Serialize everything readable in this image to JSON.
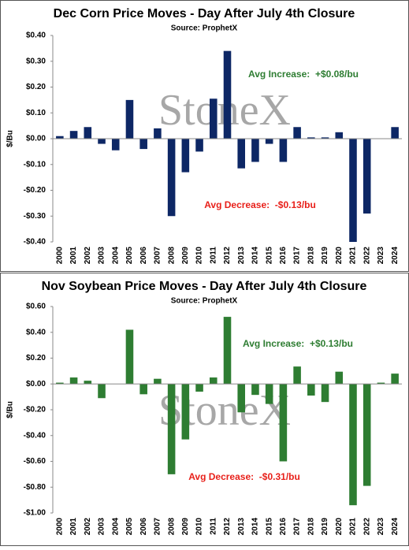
{
  "chart_data": [
    {
      "type": "bar",
      "title": "Dec Corn Price Moves - Day After July 4th Closure",
      "subtitle": "Source: ProphetX",
      "y_label": "$/Bu",
      "watermark": "StoneX",
      "color": "#0d2765",
      "categories": [
        "2000",
        "2001",
        "2002",
        "2003",
        "2004",
        "2005",
        "2006",
        "2007",
        "2008",
        "2009",
        "2010",
        "2011",
        "2012",
        "2013",
        "2014",
        "2015",
        "2016",
        "2017",
        "2018",
        "2019",
        "2020",
        "2021",
        "2022",
        "2023",
        "2024"
      ],
      "values": [
        0.01,
        0.03,
        0.045,
        -0.02,
        -0.045,
        0.15,
        -0.04,
        0.04,
        -0.3,
        -0.13,
        -0.05,
        0.155,
        0.34,
        -0.115,
        -0.09,
        -0.02,
        -0.09,
        0.045,
        0.005,
        0.005,
        0.025,
        -0.4,
        -0.29,
        0,
        0.045
      ],
      "ylim": [
        -0.4,
        0.4
      ],
      "yticks": [
        {
          "value": -0.4,
          "label": "-$0.40"
        },
        {
          "value": -0.3,
          "label": "-$0.30"
        },
        {
          "value": -0.2,
          "label": "-$0.20"
        },
        {
          "value": -0.1,
          "label": "-$0.10"
        },
        {
          "value": 0,
          "label": "$0.00"
        },
        {
          "value": 0.1,
          "label": "$0.10"
        },
        {
          "value": 0.2,
          "label": "$0.20"
        },
        {
          "value": 0.3,
          "label": "$0.30"
        },
        {
          "value": 0.4,
          "label": "$0.40"
        }
      ],
      "annotations": [
        {
          "text": "Avg Increase:  +$0.08/bu",
          "color": "#2e7d32"
        },
        {
          "text": "Avg Decrease:  -$0.13/bu",
          "color": "#e8201a"
        }
      ]
    },
    {
      "type": "bar",
      "title": "Nov Soybean Price Moves - Day After July 4th Closure",
      "subtitle": "Source: ProphetX",
      "y_label": "$/Bu",
      "watermark": "StoneX",
      "color": "#2e7d32",
      "categories": [
        "2000",
        "2001",
        "2002",
        "2003",
        "2004",
        "2005",
        "2006",
        "2007",
        "2008",
        "2009",
        "2010",
        "2011",
        "2012",
        "2013",
        "2014",
        "2015",
        "2016",
        "2017",
        "2018",
        "2019",
        "2020",
        "2021",
        "2022",
        "2023",
        "2024"
      ],
      "values": [
        0.01,
        0.05,
        0.025,
        -0.11,
        0,
        0.42,
        -0.08,
        0.04,
        -0.7,
        -0.43,
        -0.06,
        0.05,
        0.52,
        -0.22,
        -0.085,
        -0.155,
        -0.6,
        0.135,
        -0.09,
        -0.14,
        0.095,
        -0.94,
        -0.79,
        0.01,
        0.08
      ],
      "ylim": [
        -1,
        0.6
      ],
      "yticks": [
        {
          "value": -1,
          "label": "-$1.00"
        },
        {
          "value": -0.8,
          "label": "-$0.80"
        },
        {
          "value": -0.6,
          "label": "-$0.60"
        },
        {
          "value": -0.4,
          "label": "-$0.40"
        },
        {
          "value": -0.2,
          "label": "-$0.20"
        },
        {
          "value": 0,
          "label": "$0.00"
        },
        {
          "value": 0.2,
          "label": "$0.20"
        },
        {
          "value": 0.4,
          "label": "$0.40"
        },
        {
          "value": 0.6,
          "label": "$0.60"
        }
      ],
      "annotations": [
        {
          "text": "Avg Increase:  +$0.13/bu",
          "color": "#2e7d32"
        },
        {
          "text": "Avg Decrease:  -$0.31/bu",
          "color": "#e8201a"
        }
      ]
    }
  ]
}
